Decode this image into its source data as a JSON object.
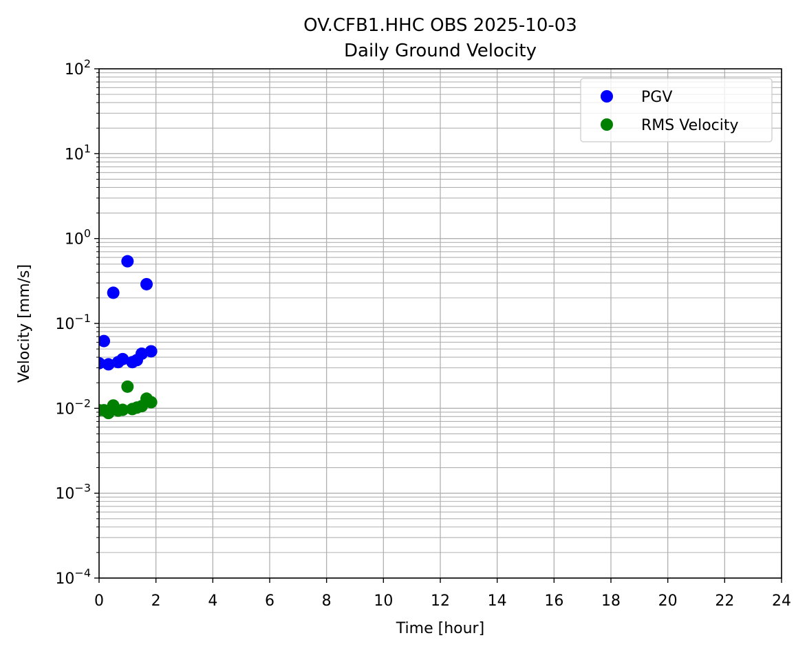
{
  "chart_data": {
    "type": "scatter",
    "title": "OV.CFB1.HHC OBS 2025-10-03",
    "subtitle": "Daily Ground Velocity",
    "xlabel": "Time [hour]",
    "ylabel": "Velocity [mm/s]",
    "xlim": [
      0,
      24
    ],
    "ylim": [
      0.0001,
      100
    ],
    "yscale": "log",
    "grid": true,
    "grid_minor": true,
    "legend_position": "top-right",
    "x_ticks": [
      "0",
      "2",
      "4",
      "6",
      "8",
      "10",
      "12",
      "14",
      "16",
      "18",
      "20",
      "22",
      "24"
    ],
    "y_ticks": [
      {
        "base": "10",
        "exp": "−4"
      },
      {
        "base": "10",
        "exp": "−3"
      },
      {
        "base": "10",
        "exp": "−2"
      },
      {
        "base": "10",
        "exp": "−1"
      },
      {
        "base": "10",
        "exp": "0"
      },
      {
        "base": "10",
        "exp": "1"
      },
      {
        "base": "10",
        "exp": "2"
      }
    ],
    "series": [
      {
        "name": "PGV",
        "color": "#0000ff",
        "points": [
          {
            "x": 0.0,
            "y": 0.034
          },
          {
            "x": 0.17,
            "y": 0.062
          },
          {
            "x": 0.33,
            "y": 0.033
          },
          {
            "x": 0.5,
            "y": 0.23
          },
          {
            "x": 0.67,
            "y": 0.035
          },
          {
            "x": 0.83,
            "y": 0.038
          },
          {
            "x": 1.0,
            "y": 0.54
          },
          {
            "x": 1.17,
            "y": 0.035
          },
          {
            "x": 1.33,
            "y": 0.037
          },
          {
            "x": 1.5,
            "y": 0.044
          },
          {
            "x": 1.67,
            "y": 0.29
          },
          {
            "x": 1.83,
            "y": 0.047
          }
        ]
      },
      {
        "name": "RMS Velocity",
        "color": "#008000",
        "points": [
          {
            "x": 0.0,
            "y": 0.0095
          },
          {
            "x": 0.17,
            "y": 0.0095
          },
          {
            "x": 0.33,
            "y": 0.0088
          },
          {
            "x": 0.5,
            "y": 0.0108
          },
          {
            "x": 0.67,
            "y": 0.0094
          },
          {
            "x": 0.83,
            "y": 0.0096
          },
          {
            "x": 1.0,
            "y": 0.018
          },
          {
            "x": 1.17,
            "y": 0.0098
          },
          {
            "x": 1.33,
            "y": 0.0102
          },
          {
            "x": 1.5,
            "y": 0.0106
          },
          {
            "x": 1.67,
            "y": 0.013
          },
          {
            "x": 1.83,
            "y": 0.0118
          }
        ]
      }
    ]
  }
}
